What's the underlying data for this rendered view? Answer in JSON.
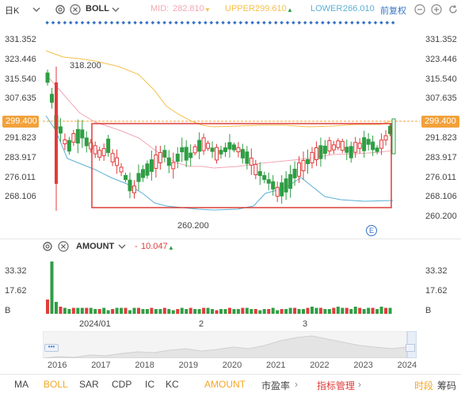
{
  "header": {
    "period": "日K",
    "indicator": "BOLL",
    "mid_label": "MID:",
    "mid_value": "282.810",
    "upper_label": "UPPER:",
    "upper_value": "299.610",
    "lower_label": "LOWER:",
    "lower_value": "266.010",
    "adjust": "前复权"
  },
  "price_axis": {
    "labels": [
      "331.352",
      "323.446",
      "315.540",
      "307.635",
      "299.400",
      "291.823",
      "283.917",
      "276.011",
      "268.106",
      "260.200"
    ],
    "current": "299.400"
  },
  "annotations": {
    "high": "318.200",
    "low": "260.200"
  },
  "volume": {
    "indicator": "AMOUNT",
    "value": "10.047",
    "axis_labels": [
      "33.32",
      "17.62",
      "B"
    ],
    "bars": [
      12,
      44,
      10,
      6,
      5,
      4,
      5,
      5,
      5,
      5,
      5,
      4,
      4,
      5,
      3,
      4,
      5,
      5,
      5,
      3,
      5,
      5,
      4,
      4,
      5,
      4,
      4,
      5,
      4,
      3,
      4,
      5,
      4,
      5,
      4,
      4,
      5,
      5,
      4,
      3,
      4,
      4,
      5,
      4,
      4,
      5,
      5,
      4,
      4,
      3,
      4,
      4,
      5,
      3,
      4,
      4,
      5,
      5,
      4,
      4,
      5,
      6,
      5,
      5,
      4,
      4,
      5,
      6,
      5,
      5,
      4,
      6,
      5,
      4,
      5,
      5,
      4,
      6,
      5,
      5
    ]
  },
  "time_axis": {
    "labels": [
      "2024/01",
      "2",
      "3"
    ]
  },
  "navigator": {
    "years": [
      "2016",
      "2017",
      "2018",
      "2019",
      "2020",
      "2021",
      "2022",
      "2023",
      "2024"
    ]
  },
  "tabs": {
    "items": [
      "MA",
      "BOLL",
      "SAR",
      "CDP",
      "IC",
      "KC",
      "AMOUNT",
      "市盈率",
      "指标管理"
    ],
    "right": [
      "时段",
      "筹码"
    ]
  },
  "colors": {
    "up": "#e23b3b",
    "down": "#2f9e44",
    "mid_line": "#f2a7b5",
    "upper_line": "#f5c04a",
    "lower_line": "#5cb0d6",
    "accent": "#f5a623",
    "box": "#d9302c",
    "current_price_bg": "#f2a13a"
  }
}
